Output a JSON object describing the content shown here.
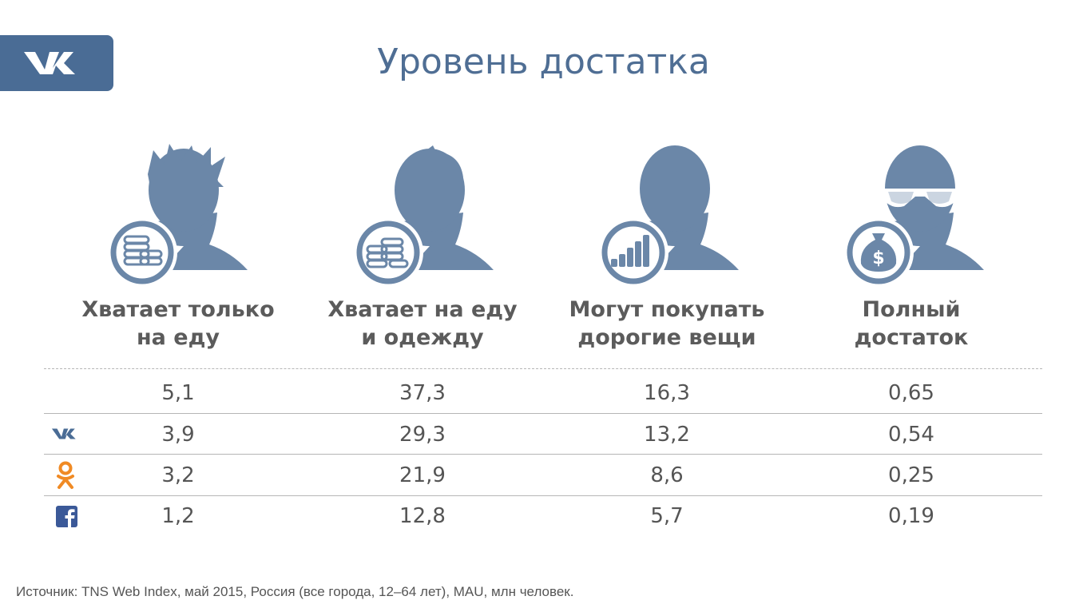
{
  "title": "Уровень достатка",
  "colors": {
    "accent": "#4a6c95",
    "icon": "#6b87a8",
    "ok": "#f08a24",
    "fb": "#3b5998"
  },
  "categories": [
    {
      "line1": "Хватает только",
      "line2": "на еду"
    },
    {
      "line1": "Хватает на еду",
      "line2": "и одежду"
    },
    {
      "line1": "Могут покупать",
      "line2": "дорогие вещи"
    },
    {
      "line1": "Полный",
      "line2": "достаток"
    }
  ],
  "rows": [
    {
      "icon": "none",
      "values": [
        "5,1",
        "37,3",
        "16,3",
        "0,65"
      ]
    },
    {
      "icon": "vk-icon",
      "values": [
        "3,9",
        "29,3",
        "13,2",
        "0,54"
      ]
    },
    {
      "icon": "odnoklassniki-icon",
      "values": [
        "3,2",
        "21,9",
        "8,6",
        "0,25"
      ]
    },
    {
      "icon": "facebook-icon",
      "values": [
        "1,2",
        "12,8",
        "5,7",
        "0,19"
      ]
    }
  ],
  "source": "Источник: TNS Web Index, май 2015, Россия (все города, 12–64 лет), MAU, млн человек."
}
